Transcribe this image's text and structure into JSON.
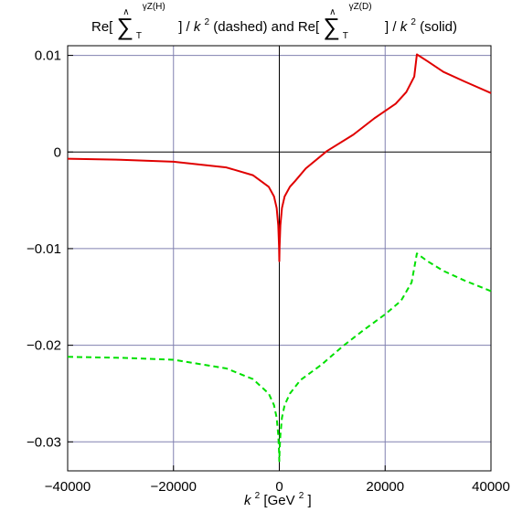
{
  "chart_data": {
    "type": "line",
    "title": {
      "part1_prefix": "Re[",
      "part1_sum": "∑",
      "part1_hat": "∧",
      "part1_sup": "γZ(H)",
      "part1_sub": "T",
      "part1_suffix": "] / ",
      "k": "k",
      "sq": "2",
      "part1_tail": " (dashed)  and  ",
      "part2_prefix": "Re[",
      "part2_sup": "γZ(D)",
      "part2_tail": " (solid)"
    },
    "xlabel": {
      "k": "k",
      "sq": "2",
      "unit_open": " [GeV",
      "unit_close": "]"
    },
    "xlim": [
      -40000,
      40000
    ],
    "ylim": [
      -0.033,
      0.011
    ],
    "x_ticks": [
      -40000,
      -20000,
      0,
      20000,
      40000
    ],
    "x_tick_labels": [
      "−40000",
      "−20000",
      "0",
      "20000",
      "40000"
    ],
    "y_ticks": [
      0.01,
      0,
      -0.01,
      -0.02,
      -0.03
    ],
    "y_tick_labels": [
      "0.01",
      "0",
      "−0.01",
      "−0.02",
      "−0.03"
    ],
    "grid": true,
    "grid_color": "#8080b0",
    "series": [
      {
        "style": "solid",
        "color": "#e00000",
        "points": [
          [
            -40000,
            -0.0007
          ],
          [
            -30000,
            -0.0008
          ],
          [
            -20000,
            -0.001
          ],
          [
            -10000,
            -0.0016
          ],
          [
            -5000,
            -0.0024
          ],
          [
            -2000,
            -0.0036
          ],
          [
            -1000,
            -0.0046
          ],
          [
            -500,
            -0.0058
          ],
          [
            -200,
            -0.0076
          ],
          [
            -50,
            -0.0098
          ],
          [
            0,
            -0.0113
          ],
          [
            50,
            -0.0098
          ],
          [
            200,
            -0.0076
          ],
          [
            500,
            -0.0058
          ],
          [
            1000,
            -0.0046
          ],
          [
            2000,
            -0.0036
          ],
          [
            3000,
            -0.003
          ],
          [
            5000,
            -0.0017
          ],
          [
            9000,
            0.0001
          ],
          [
            14000,
            0.0018
          ],
          [
            18000,
            0.0035
          ],
          [
            22000,
            0.005
          ],
          [
            24000,
            0.0062
          ],
          [
            25500,
            0.0078
          ],
          [
            26000,
            0.0101
          ],
          [
            28000,
            0.0094
          ],
          [
            31000,
            0.0083
          ],
          [
            35000,
            0.0073
          ],
          [
            40000,
            0.0061
          ]
        ]
      },
      {
        "style": "dashed",
        "color": "#00e000",
        "points": [
          [
            -40000,
            -0.0212
          ],
          [
            -30000,
            -0.0213
          ],
          [
            -20000,
            -0.0215
          ],
          [
            -10000,
            -0.0224
          ],
          [
            -5000,
            -0.0235
          ],
          [
            -2000,
            -0.025
          ],
          [
            -1000,
            -0.0262
          ],
          [
            -500,
            -0.0275
          ],
          [
            -200,
            -0.0293
          ],
          [
            -50,
            -0.031
          ],
          [
            0,
            -0.032
          ],
          [
            50,
            -0.031
          ],
          [
            200,
            -0.0293
          ],
          [
            500,
            -0.0275
          ],
          [
            1000,
            -0.0262
          ],
          [
            2000,
            -0.025
          ],
          [
            4000,
            -0.0236
          ],
          [
            8000,
            -0.022
          ],
          [
            12000,
            -0.0201
          ],
          [
            16000,
            -0.0184
          ],
          [
            20000,
            -0.0168
          ],
          [
            23000,
            -0.0154
          ],
          [
            25000,
            -0.0135
          ],
          [
            26000,
            -0.0105
          ],
          [
            28000,
            -0.0113
          ],
          [
            31000,
            -0.0123
          ],
          [
            35000,
            -0.0133
          ],
          [
            40000,
            -0.0144
          ]
        ]
      }
    ]
  }
}
